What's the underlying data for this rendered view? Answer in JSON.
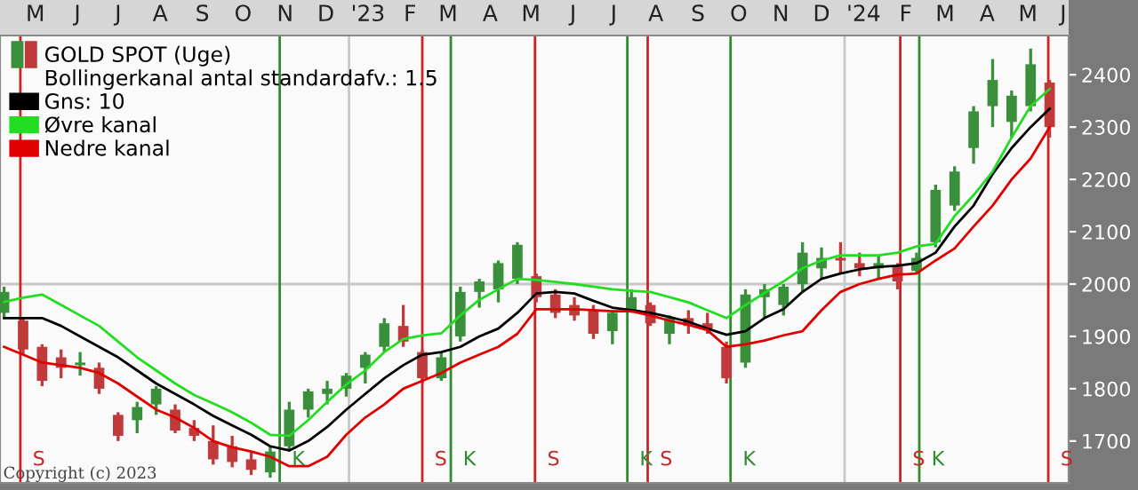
{
  "chart_data": {
    "type": "candlestick",
    "x": [
      "2022-04-22",
      "2022-05-06",
      "2022-05-20",
      "2022-06-03",
      "2022-06-17",
      "2022-07-01",
      "2022-07-15",
      "2022-07-29",
      "2022-08-12",
      "2022-08-26",
      "2022-09-09",
      "2022-09-23",
      "2022-10-07",
      "2022-10-21",
      "2022-11-04",
      "2022-11-18",
      "2022-12-02",
      "2022-12-16",
      "2022-12-30",
      "2023-01-13",
      "2023-01-27",
      "2023-02-10",
      "2023-02-24",
      "2023-03-10",
      "2023-03-24",
      "2023-04-07",
      "2023-04-21",
      "2023-05-05",
      "2023-05-19",
      "2023-06-02",
      "2023-06-16",
      "2023-06-30",
      "2023-07-14",
      "2023-07-28",
      "2023-08-11",
      "2023-08-25",
      "2023-09-08",
      "2023-09-22",
      "2023-10-06",
      "2023-10-20",
      "2023-11-03",
      "2023-11-17",
      "2023-12-01",
      "2023-12-15",
      "2023-12-29",
      "2024-01-12",
      "2024-01-26",
      "2024-02-09",
      "2024-02-23",
      "2024-03-08",
      "2024-03-22",
      "2024-04-05",
      "2024-04-19",
      "2024-05-03",
      "2024-05-17",
      "2024-05-31"
    ],
    "series": [
      {
        "name": "GOLD SPOT (Uge)",
        "colors": [
          "#3a8f3a",
          "#c0393b",
          "#c0393b",
          "#c0393b",
          "#3a8f3a",
          "#c0393b",
          "#c0393b",
          "#3a8f3a",
          "#3a8f3a",
          "#c0393b",
          "#c0393b",
          "#c0393b",
          "#c0393b",
          "#c0393b",
          "#3a8f3a",
          "#3a8f3a",
          "#3a8f3a",
          "#3a8f3a",
          "#3a8f3a",
          "#3a8f3a",
          "#3a8f3a",
          "#c0393b",
          "#c0393b",
          "#3a8f3a",
          "#3a8f3a",
          "#3a8f3a",
          "#3a8f3a",
          "#3a8f3a",
          "#c0393b",
          "#c0393b",
          "#c0393b",
          "#c0393b",
          "#3a8f3a",
          "#3a8f3a",
          "#c0393b",
          "#3a8f3a",
          "#c0393b",
          "#c0393b",
          "#c0393b",
          "#3a8f3a",
          "#3a8f3a",
          "#3a8f3a",
          "#3a8f3a",
          "#3a8f3a",
          "#c0393b",
          "#c0393b",
          "#3a8f3a",
          "#c0393b",
          "#3a8f3a",
          "#3a8f3a",
          "#3a8f3a",
          "#3a8f3a",
          "#3a8f3a",
          "#3a8f3a",
          "#3a8f3a",
          "#c0393b"
        ],
        "ohlc": [
          [
            1945,
            1995,
            1935,
            1985
          ],
          [
            1930,
            1935,
            1865,
            1875
          ],
          [
            1880,
            1885,
            1805,
            1815
          ],
          [
            1860,
            1875,
            1820,
            1840
          ],
          [
            1845,
            1870,
            1825,
            1850
          ],
          [
            1840,
            1850,
            1790,
            1800
          ],
          [
            1750,
            1755,
            1700,
            1710
          ],
          [
            1740,
            1775,
            1715,
            1765
          ],
          [
            1770,
            1805,
            1750,
            1800
          ],
          [
            1760,
            1770,
            1715,
            1720
          ],
          [
            1725,
            1740,
            1700,
            1710
          ],
          [
            1700,
            1730,
            1655,
            1665
          ],
          [
            1690,
            1710,
            1650,
            1660
          ],
          [
            1665,
            1680,
            1635,
            1645
          ],
          [
            1640,
            1690,
            1630,
            1680
          ],
          [
            1690,
            1775,
            1680,
            1760
          ],
          [
            1760,
            1800,
            1745,
            1795
          ],
          [
            1790,
            1815,
            1770,
            1800
          ],
          [
            1800,
            1830,
            1785,
            1825
          ],
          [
            1840,
            1870,
            1810,
            1865
          ],
          [
            1880,
            1935,
            1870,
            1925
          ],
          [
            1920,
            1960,
            1880,
            1890
          ],
          [
            1870,
            1875,
            1810,
            1820
          ],
          [
            1820,
            1870,
            1815,
            1860
          ],
          [
            1900,
            1995,
            1890,
            1985
          ],
          [
            1985,
            2010,
            1955,
            2005
          ],
          [
            1990,
            2045,
            1965,
            2040
          ],
          [
            2010,
            2080,
            2000,
            2075
          ],
          [
            2015,
            2020,
            1965,
            1975
          ],
          [
            1980,
            1990,
            1935,
            1945
          ],
          [
            1960,
            1975,
            1930,
            1940
          ],
          [
            1950,
            1960,
            1895,
            1905
          ],
          [
            1910,
            1950,
            1885,
            1945
          ],
          [
            1950,
            1990,
            1945,
            1975
          ],
          [
            1960,
            1965,
            1920,
            1925
          ],
          [
            1905,
            1940,
            1885,
            1935
          ],
          [
            1935,
            1950,
            1905,
            1920
          ],
          [
            1925,
            1945,
            1905,
            1915
          ],
          [
            1880,
            1890,
            1810,
            1820
          ],
          [
            1850,
            1990,
            1840,
            1980
          ],
          [
            1975,
            2000,
            1935,
            1990
          ],
          [
            1960,
            2000,
            1940,
            1995
          ],
          [
            2000,
            2080,
            1985,
            2060
          ],
          [
            2030,
            2070,
            2010,
            2050
          ],
          [
            2050,
            2080,
            2020,
            2045
          ],
          [
            2040,
            2060,
            2015,
            2030
          ],
          [
            2030,
            2055,
            2010,
            2040
          ],
          [
            2035,
            2040,
            1990,
            2005
          ],
          [
            2025,
            2060,
            2020,
            2050
          ],
          [
            2080,
            2190,
            2070,
            2180
          ],
          [
            2150,
            2225,
            2140,
            2215
          ],
          [
            2260,
            2340,
            2230,
            2330
          ],
          [
            2340,
            2430,
            2300,
            2390
          ],
          [
            2310,
            2370,
            2280,
            2360
          ],
          [
            2340,
            2450,
            2330,
            2420
          ],
          [
            2385,
            2390,
            2280,
            2300
          ]
        ]
      },
      {
        "name": "Gns: 10",
        "type": "line",
        "color": "#000000",
        "values": [
          1935,
          1935,
          1935,
          1920,
          1900,
          1880,
          1860,
          1835,
          1810,
          1790,
          1770,
          1748,
          1730,
          1712,
          1690,
          1682,
          1700,
          1727,
          1760,
          1790,
          1820,
          1845,
          1865,
          1870,
          1880,
          1900,
          1915,
          1945,
          1982,
          1985,
          1982,
          1968,
          1955,
          1950,
          1945,
          1937,
          1928,
          1915,
          1903,
          1910,
          1935,
          1952,
          1985,
          2010,
          2020,
          2028,
          2033,
          2035,
          2040,
          2060,
          2110,
          2150,
          2210,
          2260,
          2300,
          2335
        ]
      },
      {
        "name": "Øvre kanal",
        "type": "line",
        "color": "#22dd22",
        "values": [
          1966,
          1974,
          1980,
          1960,
          1940,
          1920,
          1890,
          1860,
          1835,
          1810,
          1788,
          1772,
          1755,
          1735,
          1712,
          1710,
          1740,
          1775,
          1808,
          1835,
          1870,
          1895,
          1902,
          1906,
          1940,
          1970,
          1990,
          2010,
          2008,
          2004,
          2000,
          1995,
          1990,
          1987,
          1985,
          1975,
          1965,
          1950,
          1935,
          1960,
          1983,
          2005,
          2030,
          2045,
          2055,
          2055,
          2055,
          2060,
          2072,
          2077,
          2130,
          2170,
          2215,
          2280,
          2340,
          2373
        ]
      },
      {
        "name": "Nedre kanal",
        "type": "line",
        "color": "#e00000",
        "values": [
          1880,
          1865,
          1850,
          1845,
          1840,
          1830,
          1810,
          1785,
          1760,
          1745,
          1725,
          1700,
          1688,
          1680,
          1670,
          1652,
          1652,
          1670,
          1712,
          1745,
          1770,
          1800,
          1815,
          1830,
          1850,
          1865,
          1880,
          1905,
          1952,
          1952,
          1952,
          1950,
          1948,
          1948,
          1940,
          1930,
          1922,
          1912,
          1880,
          1885,
          1892,
          1902,
          1910,
          1950,
          1985,
          2000,
          2010,
          2018,
          2020,
          2045,
          2068,
          2110,
          2150,
          2200,
          2240,
          2300
        ]
      }
    ],
    "xlim": [
      "2022-04-19",
      "2024-06-14"
    ],
    "xticks": [
      {
        "value": "2022-05-15",
        "label": "M"
      },
      {
        "value": "2022-06-15",
        "label": "J"
      },
      {
        "value": "2022-07-15",
        "label": "J"
      },
      {
        "value": "2022-08-15",
        "label": "A"
      },
      {
        "value": "2022-09-15",
        "label": "S"
      },
      {
        "value": "2022-10-15",
        "label": "O"
      },
      {
        "value": "2022-11-15",
        "label": "N"
      },
      {
        "value": "2022-12-15",
        "label": "D"
      },
      {
        "value": "2023-01-15",
        "label": "'23"
      },
      {
        "value": "2023-02-15",
        "label": "F"
      },
      {
        "value": "2023-03-15",
        "label": "M"
      },
      {
        "value": "2023-04-15",
        "label": "A"
      },
      {
        "value": "2023-05-15",
        "label": "M"
      },
      {
        "value": "2023-06-15",
        "label": "J"
      },
      {
        "value": "2023-07-15",
        "label": "J"
      },
      {
        "value": "2023-08-15",
        "label": "A"
      },
      {
        "value": "2023-09-15",
        "label": "S"
      },
      {
        "value": "2023-10-15",
        "label": "O"
      },
      {
        "value": "2023-11-15",
        "label": "N"
      },
      {
        "value": "2023-12-15",
        "label": "D"
      },
      {
        "value": "2024-01-15",
        "label": "'24"
      },
      {
        "value": "2024-02-15",
        "label": "F"
      },
      {
        "value": "2024-03-15",
        "label": "M"
      },
      {
        "value": "2024-04-15",
        "label": "A"
      },
      {
        "value": "2024-05-15",
        "label": "M"
      },
      {
        "value": "2024-06-10",
        "label": "J"
      }
    ],
    "ylim": [
      1620,
      2475
    ],
    "yticks": [
      1700,
      1800,
      1900,
      2000,
      2100,
      2200,
      2300,
      2400
    ],
    "ref_lines": [
      {
        "axis": "y",
        "value": 2000,
        "color": "#c8c8c8"
      },
      {
        "axis": "x",
        "value": "2023-01-01",
        "color": "#c8c8c8"
      },
      {
        "axis": "x",
        "value": "2024-01-01",
        "color": "#c8c8c8"
      },
      {
        "axis": "x",
        "value": "2022-05-04",
        "label": "S",
        "color": "#cc2222"
      },
      {
        "axis": "x",
        "value": "2022-11-11",
        "label": "K",
        "color": "#2e8b2e"
      },
      {
        "axis": "x",
        "value": "2023-02-24",
        "label": "S",
        "color": "#cc2222"
      },
      {
        "axis": "x",
        "value": "2023-03-17",
        "label": "K",
        "color": "#2e8b2e"
      },
      {
        "axis": "x",
        "value": "2023-05-18",
        "label": "S",
        "color": "#cc2222"
      },
      {
        "axis": "x",
        "value": "2023-07-25",
        "label": "K",
        "color": "#2e8b2e"
      },
      {
        "axis": "x",
        "value": "2023-08-09",
        "label": "S",
        "color": "#cc2222"
      },
      {
        "axis": "x",
        "value": "2023-10-09",
        "label": "K",
        "color": "#2e8b2e"
      },
      {
        "axis": "x",
        "value": "2024-02-11",
        "label": "S",
        "color": "#cc2222"
      },
      {
        "axis": "x",
        "value": "2024-02-25",
        "label": "K",
        "color": "#2e8b2e"
      },
      {
        "axis": "x",
        "value": "2024-05-30",
        "label": "S",
        "color": "#cc2222"
      }
    ],
    "annotations": [
      "Bollingerkanal antal standardafv.: 1.5",
      "Copyright (c) 2023"
    ],
    "legend": "top left",
    "grid": false
  }
}
